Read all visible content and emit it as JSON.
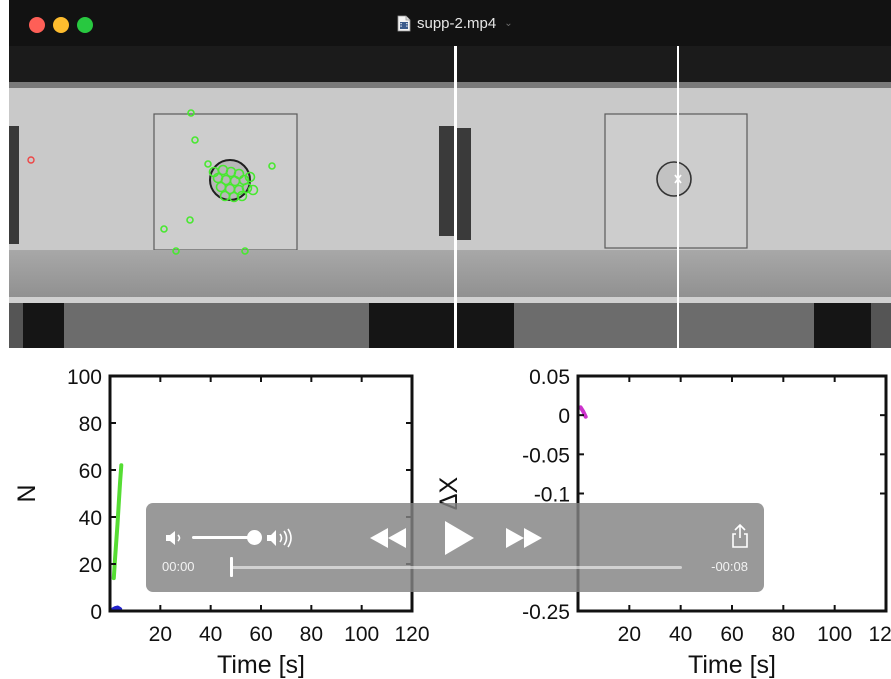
{
  "window": {
    "title": "supp-2.mp4",
    "traffic_colors": {
      "close": "#fe5f57",
      "minimize": "#febc2e",
      "maximize": "#28c840"
    }
  },
  "player": {
    "current_time": "00:00",
    "remaining_time": "-00:08",
    "playback_progress": 0.0,
    "volume_level": 0.9,
    "icons": [
      "volume-low-icon",
      "volume-high-icon",
      "rewind-icon",
      "play-icon",
      "fast-forward-icon",
      "share-icon"
    ]
  },
  "chart_data": [
    {
      "type": "line",
      "xlabel": "Time [s]",
      "ylabel": "N",
      "xlim": [
        0,
        120
      ],
      "ylim": [
        0,
        100
      ],
      "xticks": [
        20,
        40,
        60,
        80,
        100,
        120
      ],
      "xtick_labels": [
        "20",
        "40",
        "60",
        "80",
        "100",
        "120"
      ],
      "yticks": [
        0,
        20,
        40,
        60,
        80,
        100
      ],
      "ytick_labels": [
        "0",
        "20",
        "40",
        "60",
        "80",
        "100"
      ],
      "series": [
        {
          "color": "#55dd33",
          "x": [
            1.5,
            2,
            3,
            3.5,
            4,
            4.5
          ],
          "y": [
            14,
            22,
            37,
            46,
            55,
            62
          ]
        },
        {
          "color": "#2222cc",
          "x": [
            1,
            2,
            3,
            4
          ],
          "y": [
            0.6,
            1.2,
            1.5,
            0.8
          ]
        }
      ]
    },
    {
      "type": "line",
      "xlabel": "Time [s]",
      "ylabel": "ΔX",
      "xlim": [
        0,
        120
      ],
      "ylim": [
        -0.25,
        0.05
      ],
      "xticks": [
        20,
        40,
        60,
        80,
        100,
        120
      ],
      "xtick_labels": [
        "20",
        "40",
        "60",
        "80",
        "100",
        "120"
      ],
      "yticks": [
        0.05,
        0,
        -0.05,
        -0.1,
        -0.25
      ],
      "ytick_labels": [
        "0.05",
        "0",
        "-0.05",
        "-0.1",
        "-0.25"
      ],
      "series": [
        {
          "color": "#cc33cc",
          "x": [
            1,
            2,
            3
          ],
          "y": [
            0.01,
            0.005,
            -0.002
          ]
        }
      ]
    }
  ]
}
